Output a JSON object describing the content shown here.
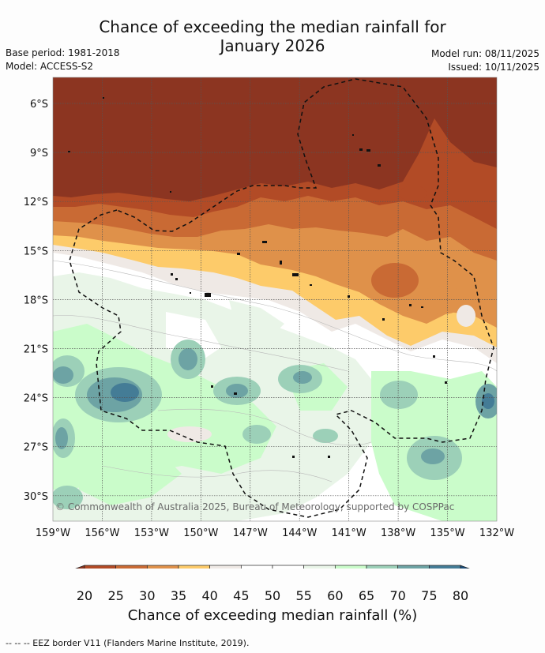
{
  "title_line1": "Chance of exceeding the median rainfall for",
  "title_line2": "January 2026",
  "base_period": "Base period: 1981-2018",
  "model": "Model: ACCESS-S2",
  "model_run": "Model run: 08/11/2025",
  "issued": "Issued: 10/11/2025",
  "copyright": "© Commonwealth of Australia 2025, Bureau of Meteorology, supported by COSPPac",
  "lat_labels": [
    "6°S",
    "9°S",
    "12°S",
    "15°S",
    "18°S",
    "21°S",
    "24°S",
    "27°S",
    "30°S"
  ],
  "lon_labels": [
    "159°W",
    "156°W",
    "153°W",
    "150°W",
    "147°W",
    "144°W",
    "141°W",
    "138°W",
    "135°W",
    "132°W"
  ],
  "colorbar": {
    "title": "Chance of exceeding median rainfall (%)",
    "ticks": [
      "20",
      "25",
      "30",
      "35",
      "40",
      "45",
      "50",
      "55",
      "60",
      "65",
      "70",
      "75",
      "80"
    ],
    "colors": [
      "#8c3521",
      "#b24b26",
      "#c96a34",
      "#df914a",
      "#fdcb6a",
      "#efe9e5",
      "#ffffff",
      "#ffffff",
      "#e9f5e8",
      "#cafcca",
      "#9cd0b8",
      "#6da3a4",
      "#447c96",
      "#1a4e7c"
    ]
  },
  "footnote": "--  --  -- EEZ border V11 (Flanders Marine Institute, 2019)."
}
